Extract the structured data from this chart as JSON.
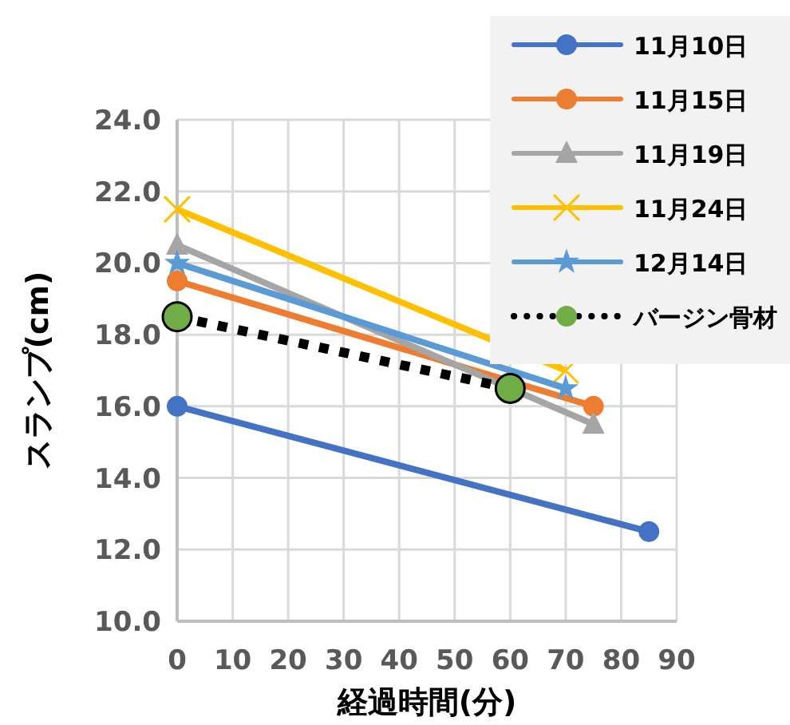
{
  "chart_data": {
    "type": "line",
    "xlabel": "経過時間(分)",
    "ylabel": "スランプ(cm)",
    "xlim": [
      0,
      90
    ],
    "xticks": [
      0,
      10,
      20,
      30,
      40,
      50,
      60,
      70,
      80,
      90
    ],
    "ylim": [
      10,
      24
    ],
    "yticks": [
      {
        "value": 10,
        "label": "10.0"
      },
      {
        "value": 12,
        "label": "12.0"
      },
      {
        "value": 14,
        "label": "14.0"
      },
      {
        "value": 16,
        "label": "16.0"
      },
      {
        "value": 18,
        "label": "18.0"
      },
      {
        "value": 20,
        "label": "20.0"
      },
      {
        "value": 22,
        "label": "22.0"
      },
      {
        "value": 24,
        "label": "24.0"
      }
    ],
    "grid": true,
    "legend": "top right",
    "series": [
      {
        "name": "11月10日",
        "color": "#4472c4",
        "marker": "circle",
        "x": [
          0,
          85
        ],
        "values": [
          16,
          12.5
        ]
      },
      {
        "name": "11月15日",
        "color": "#ed7d31",
        "marker": "circle",
        "x": [
          0,
          75
        ],
        "values": [
          19.5,
          16
        ]
      },
      {
        "name": "11月19日",
        "color": "#a5a5a5",
        "marker": "triangle",
        "x": [
          0,
          75
        ],
        "values": [
          20.5,
          15.5
        ]
      },
      {
        "name": "11月24日",
        "color": "#ffc000",
        "marker": "cross",
        "x": [
          0,
          70
        ],
        "values": [
          21.5,
          17
        ]
      },
      {
        "name": "12月14日",
        "color": "#5b9bd5",
        "marker": "star",
        "x": [
          0,
          70
        ],
        "values": [
          20,
          16.5
        ]
      },
      {
        "name": "バージン骨材",
        "color": "#70ad47",
        "marker": "circle",
        "line_style": "dotted",
        "x": [
          0,
          60
        ],
        "values": [
          18.5,
          16.5
        ]
      }
    ]
  }
}
